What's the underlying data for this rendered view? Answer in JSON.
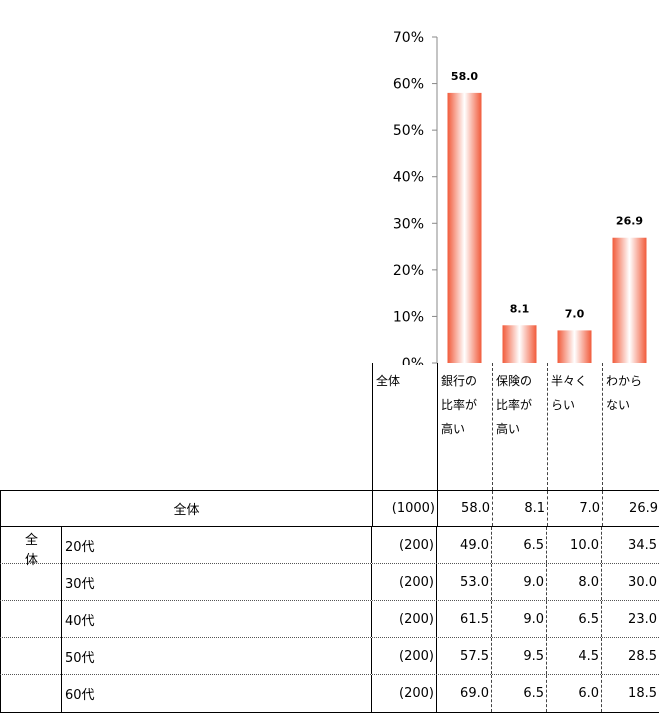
{
  "chart_data": {
    "type": "bar",
    "categories": [
      "銀行の比率が高い",
      "保険の比率が高い",
      "半々くらい",
      "わからない"
    ],
    "values": [
      58.0,
      8.1,
      7.0,
      26.9
    ],
    "value_labels": [
      "58.0",
      "8.1",
      "7.0",
      "26.9"
    ],
    "y_ticks": [
      "0%",
      "10%",
      "20%",
      "30%",
      "40%",
      "50%",
      "60%",
      "70%"
    ],
    "ylim": [
      0,
      70
    ],
    "title": "",
    "xlabel": "",
    "ylabel": "",
    "grid": false,
    "bar_color": "#f15a3a"
  },
  "table": {
    "header": {
      "total": "全体",
      "cols": [
        [
          "銀行の",
          "比率が",
          "高い"
        ],
        [
          "保険の",
          "比率が",
          "高い"
        ],
        [
          "半々く",
          "らい"
        ],
        [
          "わから",
          "ない"
        ]
      ]
    },
    "total_row": {
      "label": "全体",
      "n": "(1000)",
      "values": [
        "58.0",
        "8.1",
        "7.0",
        "26.9"
      ]
    },
    "group_label": [
      "全",
      "体"
    ],
    "rows": [
      {
        "label": "20代",
        "n": "(200)",
        "values": [
          "49.0",
          "6.5",
          "10.0",
          "34.5"
        ]
      },
      {
        "label": "30代",
        "n": "(200)",
        "values": [
          "53.0",
          "9.0",
          "8.0",
          "30.0"
        ]
      },
      {
        "label": "40代",
        "n": "(200)",
        "values": [
          "61.5",
          "9.0",
          "6.5",
          "23.0"
        ]
      },
      {
        "label": "50代",
        "n": "(200)",
        "values": [
          "57.5",
          "9.5",
          "4.5",
          "28.5"
        ]
      },
      {
        "label": "60代",
        "n": "(200)",
        "values": [
          "69.0",
          "6.5",
          "6.0",
          "18.5"
        ]
      }
    ]
  }
}
